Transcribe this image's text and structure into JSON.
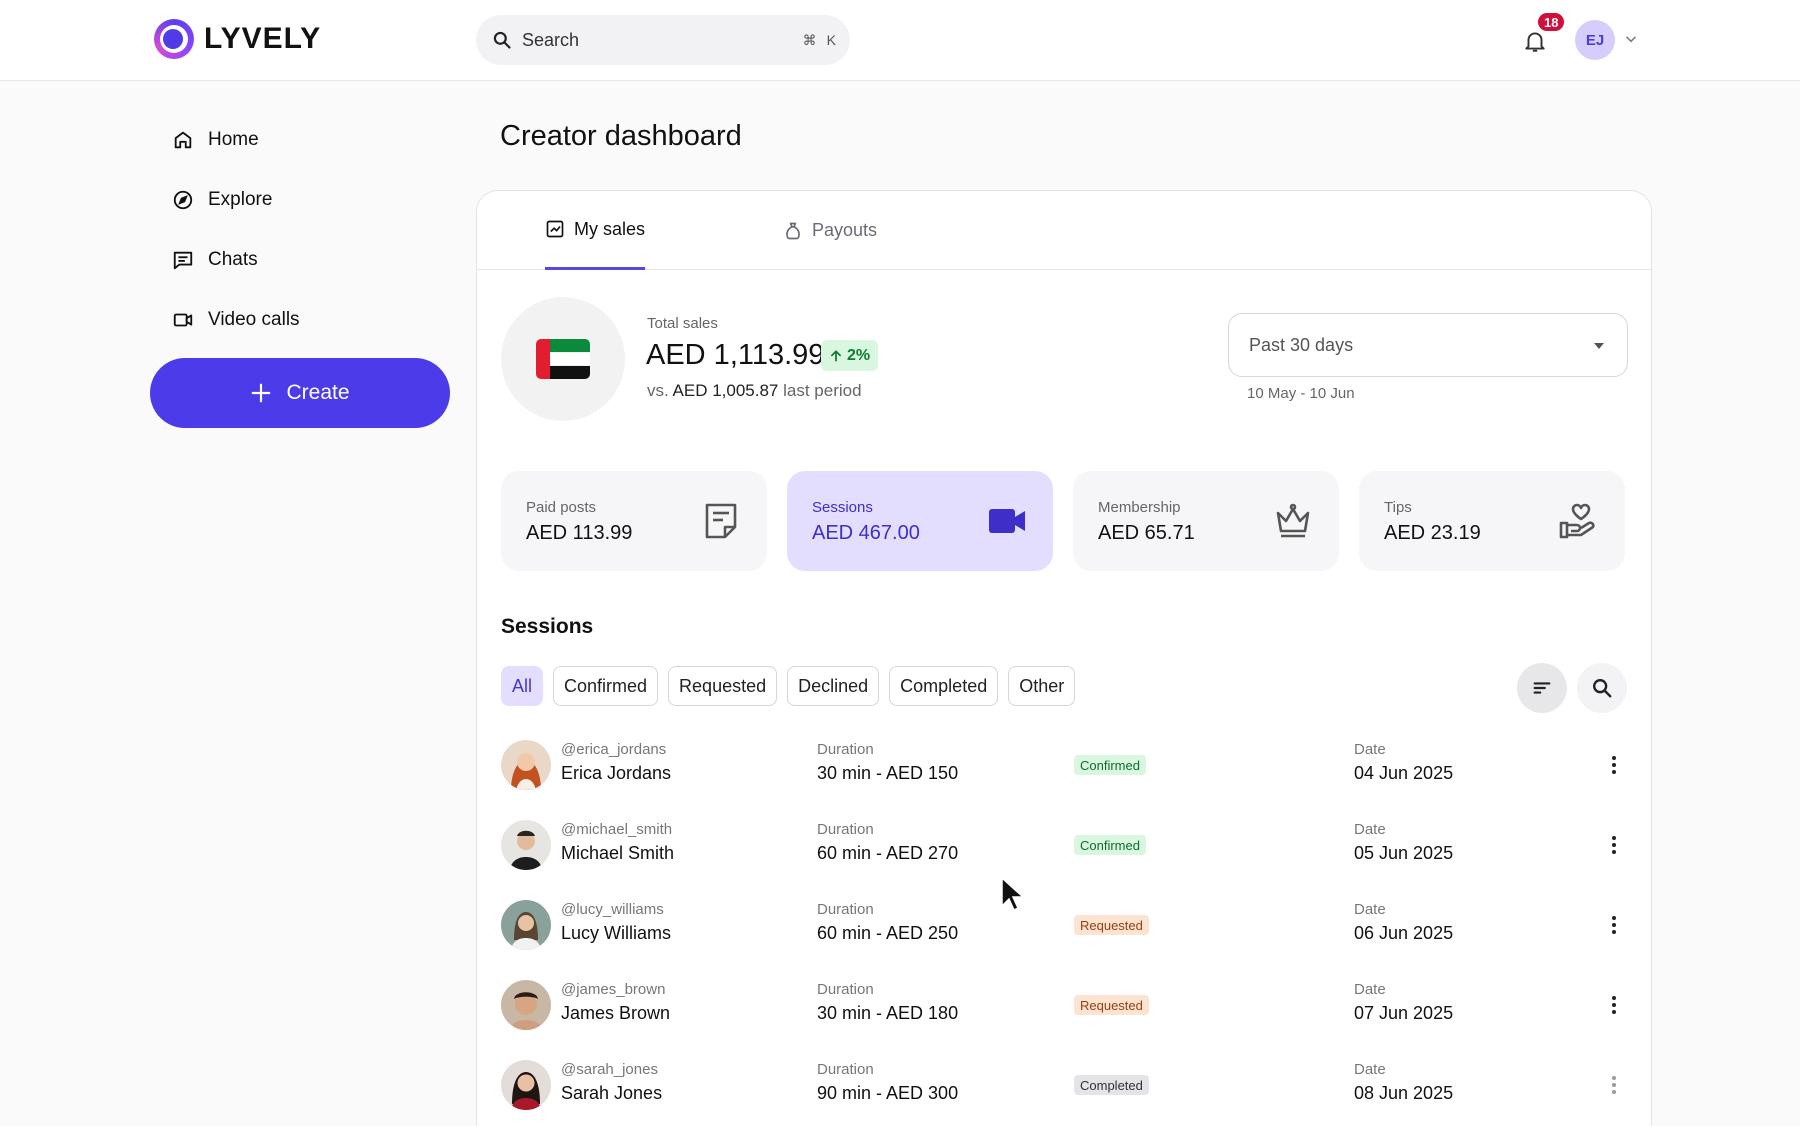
{
  "brand": {
    "name": "LYVELY",
    "accent": "#4b3be8"
  },
  "search": {
    "placeholder": "Search",
    "shortcut_mod": "⌘",
    "shortcut_key": "K"
  },
  "notifications": {
    "count": "18"
  },
  "user": {
    "initials": "EJ"
  },
  "sidebar": {
    "items": [
      {
        "label": "Home",
        "icon": "home-icon"
      },
      {
        "label": "Explore",
        "icon": "compass-icon"
      },
      {
        "label": "Chats",
        "icon": "chat-icon"
      },
      {
        "label": "Video calls",
        "icon": "video-icon"
      }
    ],
    "create_label": "Create"
  },
  "page": {
    "title": "Creator dashboard"
  },
  "tabs": [
    {
      "label": "My sales",
      "active": true
    },
    {
      "label": "Payouts",
      "active": false
    }
  ],
  "summary": {
    "total_label": "Total sales",
    "total_value": "AED 1,113.99",
    "growth": "2%",
    "compare_prefix": "vs.",
    "compare_value": "AED 1,005.87",
    "compare_suffix": "last period"
  },
  "period": {
    "selected": "Past 30 days",
    "range": "10 May - 10 Jun"
  },
  "stats": [
    {
      "label": "Paid posts",
      "value": "AED 113.99",
      "icon": "post-icon"
    },
    {
      "label": "Sessions",
      "value": "AED 467.00",
      "icon": "video-camera-icon",
      "active": true
    },
    {
      "label": "Membership",
      "value": "AED 65.71",
      "icon": "crown-icon"
    },
    {
      "label": "Tips",
      "value": "AED 23.19",
      "icon": "hand-heart-icon"
    }
  ],
  "sessions": {
    "title": "Sessions",
    "filters": [
      "All",
      "Confirmed",
      "Requested",
      "Declined",
      "Completed",
      "Other"
    ],
    "active_filter": "All",
    "duration_label": "Duration",
    "date_label": "Date",
    "rows": [
      {
        "handle": "@erica_jordans",
        "name": "Erica Jordans",
        "duration": "30 min - AED 150",
        "status": "Confirmed",
        "date": "04 Jun 2025"
      },
      {
        "handle": "@michael_smith",
        "name": "Michael Smith",
        "duration": "60 min - AED 270",
        "status": "Confirmed",
        "date": "05 Jun 2025"
      },
      {
        "handle": "@lucy_williams",
        "name": "Lucy Williams",
        "duration": "60 min - AED 250",
        "status": "Requested",
        "date": "06 Jun 2025"
      },
      {
        "handle": "@james_brown",
        "name": "James Brown",
        "duration": "30 min - AED 180",
        "status": "Requested",
        "date": "07 Jun 2025"
      },
      {
        "handle": "@sarah_jones",
        "name": "Sarah Jones",
        "duration": "90 min - AED 300",
        "status": "Completed",
        "date": "08 Jun 2025"
      }
    ]
  }
}
